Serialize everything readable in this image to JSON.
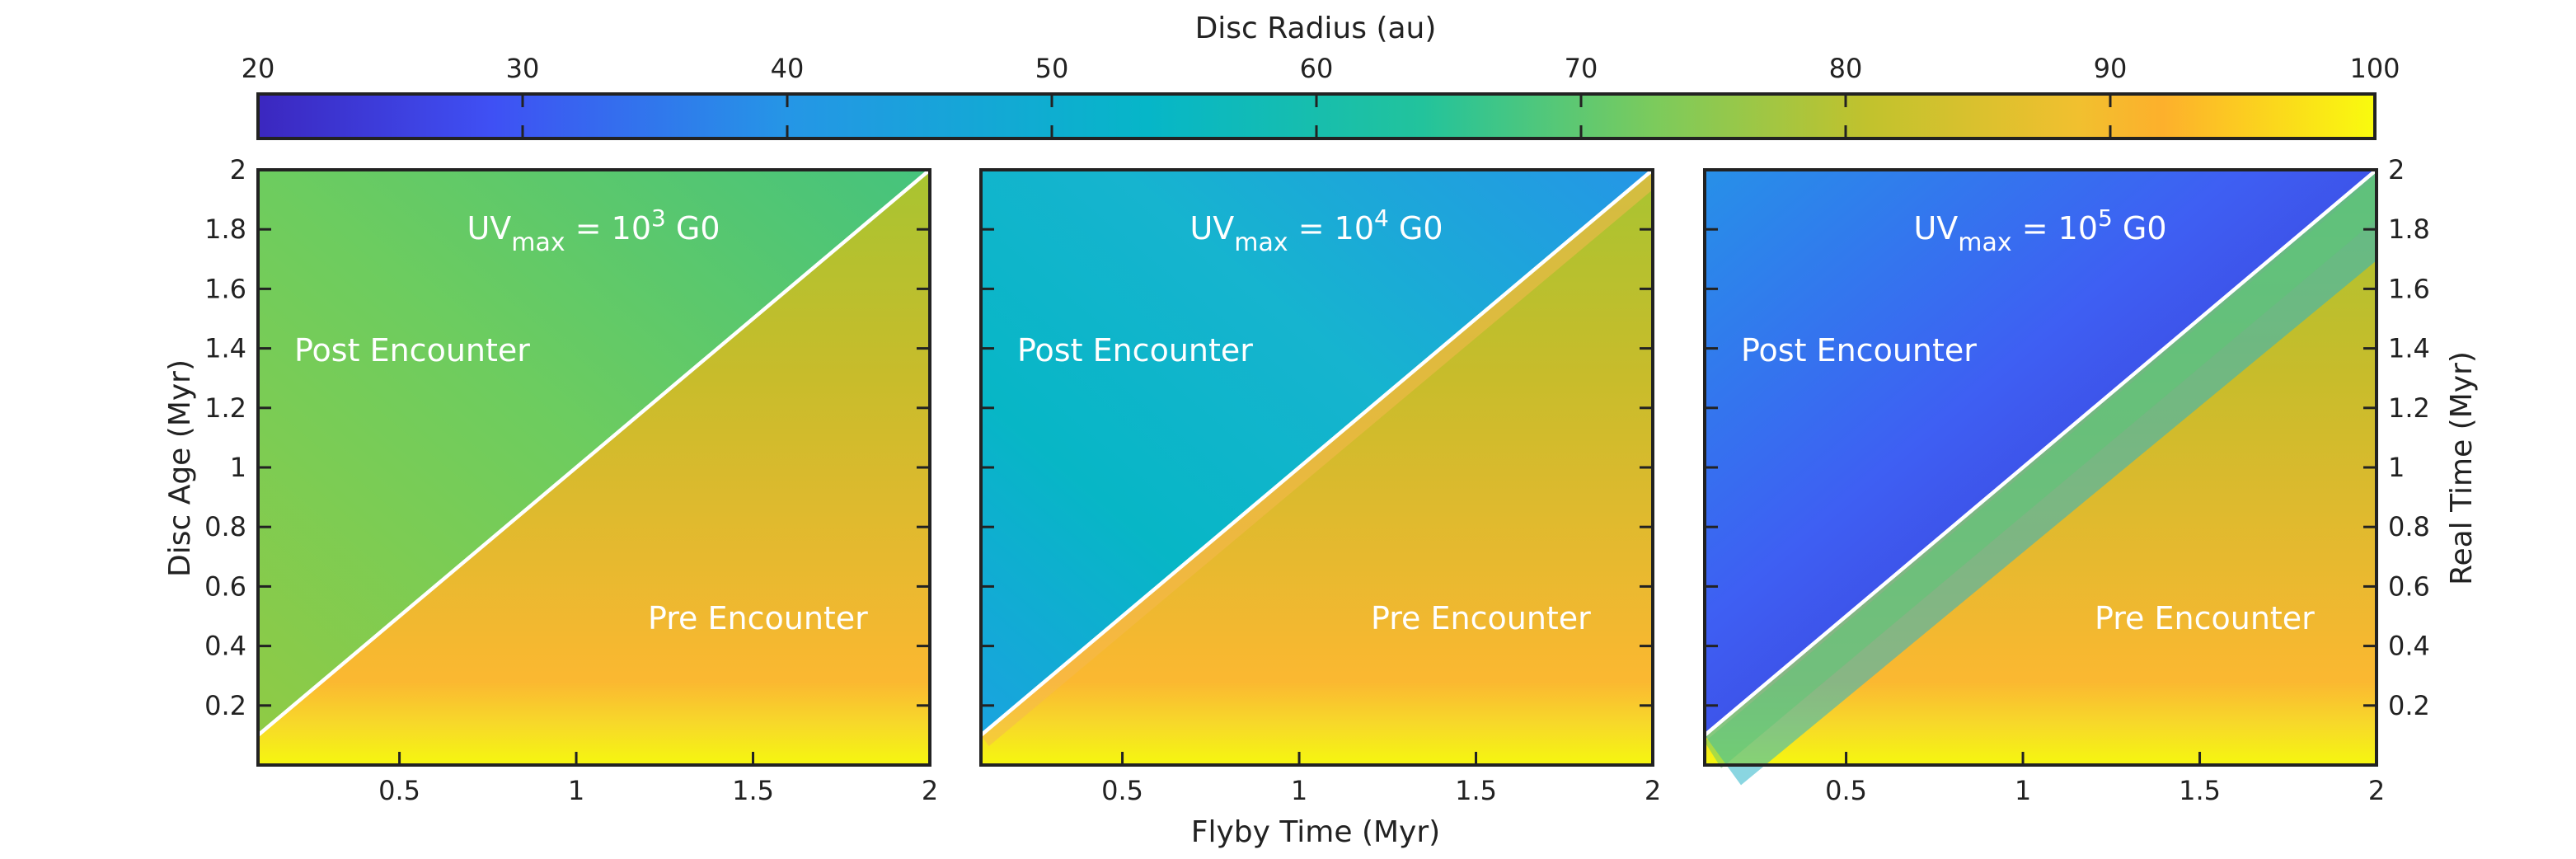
{
  "chart_data": {
    "type": "heatmap",
    "colorbar": {
      "label": "Disc Radius (au)",
      "range": [
        20,
        100
      ],
      "ticks": [
        "20",
        "30",
        "40",
        "50",
        "60",
        "70",
        "80",
        "90",
        "100"
      ],
      "colormap": [
        "#3b27bf",
        "#3f50f4",
        "#2596e6",
        "#06b6c8",
        "#22c39c",
        "#7ccb5c",
        "#c1c22d",
        "#f1c02f",
        "#fdb02c",
        "#f9fb0e"
      ]
    },
    "x_axis": {
      "label": "Flyby Time (Myr)",
      "range": [
        0.1,
        2.0
      ],
      "ticks": [
        "0.5",
        "1",
        "1.5",
        "2"
      ]
    },
    "y_axis_left": {
      "label": "Disc Age (Myr)",
      "range": [
        0.0,
        2.0
      ],
      "ticks": [
        "0.2",
        "0.4",
        "0.6",
        "0.8",
        "1",
        "1.2",
        "1.4",
        "1.6",
        "1.8",
        "2"
      ]
    },
    "y_axis_right": {
      "label": "Real Time (Myr)",
      "ticks": [
        "0.2",
        "0.4",
        "0.6",
        "0.8",
        "1",
        "1.2",
        "1.4",
        "1.6",
        "1.8",
        "2"
      ]
    },
    "boundary_line": {
      "description": "Disc Age = Flyby Time",
      "color": "#ffffff",
      "from": [
        0.1,
        0.1
      ],
      "to": [
        2.0,
        2.0
      ]
    },
    "region_labels": {
      "upper": "Post Encounter",
      "lower": "Pre Encounter"
    },
    "panels": [
      {
        "uv_base": "UV",
        "uv_sub": "max",
        "uv_eq": " = 10",
        "uv_exp": "3",
        "uv_unit": " G0",
        "post_radius": 70,
        "pre_radius": 80
      },
      {
        "uv_base": "UV",
        "uv_sub": "max",
        "uv_eq": " = 10",
        "uv_exp": "4",
        "uv_unit": " G0",
        "post_radius": 56,
        "pre_radius": 80
      },
      {
        "uv_base": "UV",
        "uv_sub": "max",
        "uv_eq": " = 10",
        "uv_exp": "5",
        "uv_unit": " G0",
        "post_radius": 28,
        "pre_radius": 80
      }
    ]
  }
}
